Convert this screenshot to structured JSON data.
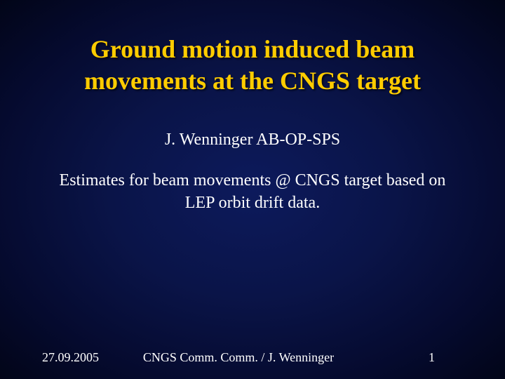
{
  "slide": {
    "title": "Ground motion induced beam movements at the CNGS target",
    "author": "J. Wenninger AB-OP-SPS",
    "description": "Estimates for beam movements @ CNGS target based on LEP orbit drift data."
  },
  "footer": {
    "date": "27.09.2005",
    "center": "CNGS Comm. Comm. / J. Wenninger",
    "page": "1"
  },
  "style": {
    "title_color": "#ffcc00",
    "body_color": "#ffffff",
    "title_fontsize_pt": 28,
    "body_fontsize_pt": 18,
    "footer_fontsize_pt": 14,
    "font_family": "Times New Roman",
    "background_gradient": {
      "type": "radial",
      "stops": [
        {
          "color": "#0d1a5c",
          "at": 0
        },
        {
          "color": "#0a1448",
          "at": 40
        },
        {
          "color": "#050a2e",
          "at": 75
        },
        {
          "color": "#020518",
          "at": 100
        }
      ]
    }
  }
}
